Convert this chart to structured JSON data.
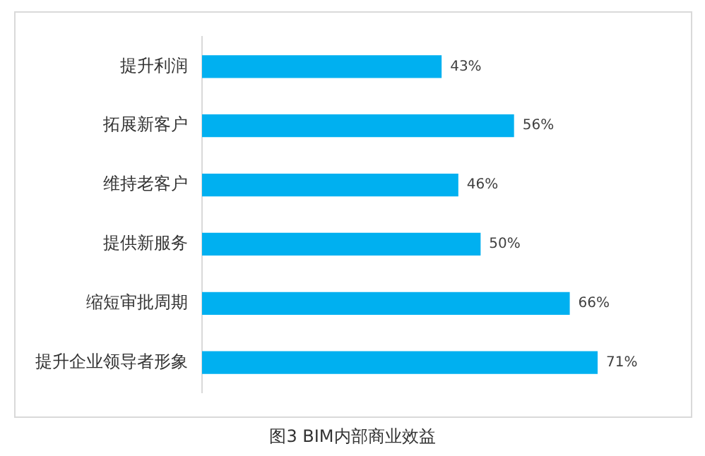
{
  "chart_data": {
    "type": "bar",
    "orientation": "horizontal",
    "title": "图3  BIM内部商业效益",
    "categories": [
      "提升利润",
      "拓展新客户",
      "维持老客户",
      "提供新服务",
      "缩短审批周期",
      "提升企业领导者形象"
    ],
    "values": [
      43,
      56,
      46,
      50,
      66,
      71
    ],
    "color": "#00b0f0",
    "value_labels": [
      "43%",
      "56%",
      "46%",
      "50%",
      "66%",
      "71%"
    ],
    "legend": false
  }
}
